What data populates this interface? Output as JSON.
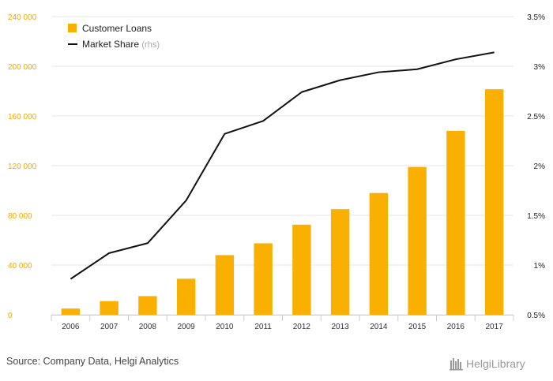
{
  "chart_data": {
    "type": "bar",
    "categories": [
      "2006",
      "2007",
      "2008",
      "2009",
      "2010",
      "2011",
      "2012",
      "2013",
      "2014",
      "2015",
      "2016",
      "2017"
    ],
    "series": [
      {
        "name": "Customer Loans",
        "type": "bar",
        "axis": "left",
        "color": "#f9b000",
        "values": [
          5000,
          11000,
          15000,
          29000,
          48000,
          57500,
          72500,
          85000,
          98000,
          119000,
          148000,
          181500
        ]
      },
      {
        "name": "Market Share",
        "suffix": "(rhs)",
        "type": "line",
        "axis": "right",
        "color": "#111111",
        "values": [
          0.86,
          1.12,
          1.22,
          1.65,
          2.32,
          2.45,
          2.74,
          2.86,
          2.94,
          2.97,
          3.07,
          3.14
        ]
      }
    ],
    "y_left": {
      "min": 0,
      "max": 240000,
      "ticks": [
        "0",
        "40 000",
        "80 000",
        "120 000",
        "160 000",
        "200 000",
        "240 000"
      ],
      "tick_values": [
        0,
        40000,
        80000,
        120000,
        160000,
        200000,
        240000
      ]
    },
    "y_right": {
      "min": 0.5,
      "max": 3.5,
      "ticks": [
        "0.5%",
        "1%",
        "1.5%",
        "2%",
        "2.5%",
        "3%",
        "3.5%"
      ],
      "tick_values": [
        0.5,
        1.0,
        1.5,
        2.0,
        2.5,
        3.0,
        3.5
      ]
    },
    "grid": true,
    "legend_position": "top-left"
  },
  "footer": {
    "source": "Source: Company Data, Helgi Analytics",
    "logo_text": "HelgiLibrary"
  }
}
